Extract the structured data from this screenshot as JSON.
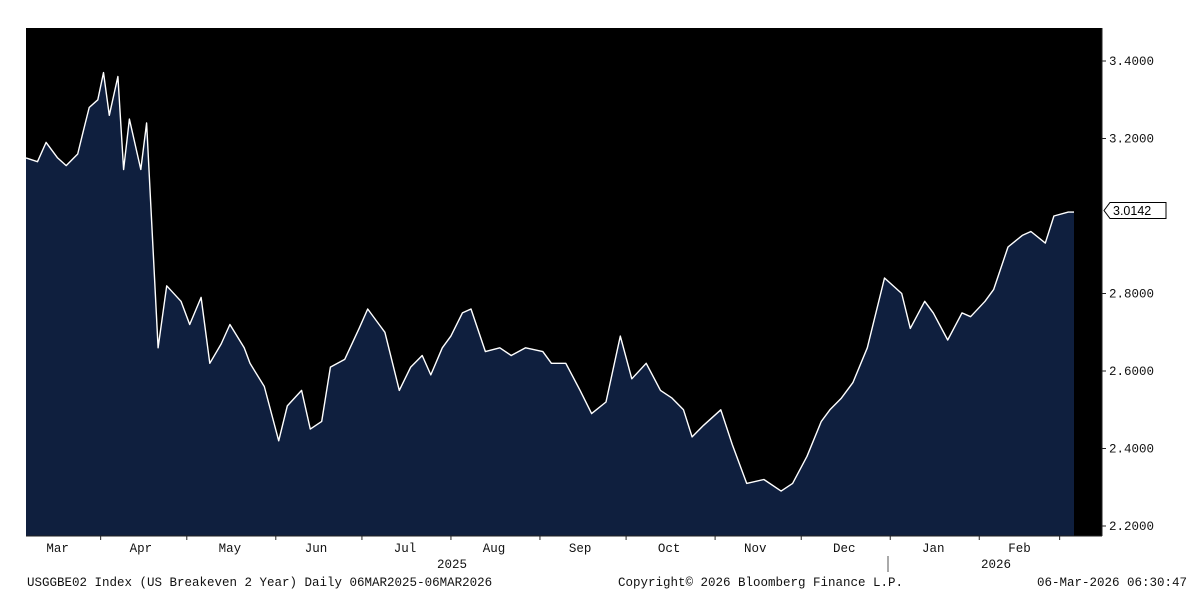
{
  "chart_data": {
    "type": "area",
    "title": "",
    "xlabel": "",
    "ylabel": "",
    "ylim": [
      2.18,
      3.48
    ],
    "yticks": [
      "2.2000",
      "2.4000",
      "2.6000",
      "2.8000",
      "3.2000",
      "3.4000"
    ],
    "ytick_values": [
      2.2,
      2.4,
      2.6,
      2.8,
      3.2,
      3.4
    ],
    "last_value_label": "3.0142",
    "last_value": 3.0142,
    "month_labels": [
      "Mar",
      "Apr",
      "May",
      "Jun",
      "Jul",
      "Aug",
      "Sep",
      "Oct",
      "Nov",
      "Dec",
      "Jan",
      "Feb"
    ],
    "year_labels": [
      "2025",
      "2026"
    ],
    "grid": false,
    "legend": "none",
    "series": [
      {
        "x": [
          "2025-03-06",
          "2025-03-10",
          "2025-03-13",
          "2025-03-17",
          "2025-03-20",
          "2025-03-24",
          "2025-03-26",
          "2025-03-28",
          "2025-03-31",
          "2025-04-02",
          "2025-04-04",
          "2025-04-07",
          "2025-04-09",
          "2025-04-11",
          "2025-04-15",
          "2025-04-17",
          "2025-04-21",
          "2025-04-24",
          "2025-04-29",
          "2025-05-02",
          "2025-05-06",
          "2025-05-09",
          "2025-05-13",
          "2025-05-16",
          "2025-05-21",
          "2025-05-23",
          "2025-05-28",
          "2025-06-02",
          "2025-06-05",
          "2025-06-10",
          "2025-06-13",
          "2025-06-17",
          "2025-06-20",
          "2025-06-25",
          "2025-06-30",
          "2025-07-03",
          "2025-07-09",
          "2025-07-14",
          "2025-07-18",
          "2025-07-22",
          "2025-07-25",
          "2025-07-29",
          "2025-08-01",
          "2025-08-05",
          "2025-08-08",
          "2025-08-13",
          "2025-08-18",
          "2025-08-22",
          "2025-08-27",
          "2025-09-02",
          "2025-09-05",
          "2025-09-10",
          "2025-09-15",
          "2025-09-19",
          "2025-09-24",
          "2025-09-29",
          "2025-10-03",
          "2025-10-08",
          "2025-10-13",
          "2025-10-17",
          "2025-10-21",
          "2025-10-24",
          "2025-10-28",
          "2025-11-03",
          "2025-11-07",
          "2025-11-12",
          "2025-11-18",
          "2025-11-24",
          "2025-11-28",
          "2025-12-03",
          "2025-12-08",
          "2025-12-11",
          "2025-12-15",
          "2025-12-19",
          "2025-12-24",
          "2025-12-30",
          "2026-01-05",
          "2026-01-08",
          "2026-01-13",
          "2026-01-16",
          "2026-01-21",
          "2026-01-26",
          "2026-01-29",
          "2026-02-03",
          "2026-02-06",
          "2026-02-11",
          "2026-02-16",
          "2026-02-19",
          "2026-02-24",
          "2026-02-27",
          "2026-03-04",
          "2026-03-06"
        ],
        "values": [
          3.15,
          3.14,
          3.19,
          3.15,
          3.13,
          3.16,
          3.22,
          3.28,
          3.3,
          3.37,
          3.26,
          3.36,
          3.12,
          3.25,
          3.12,
          3.24,
          2.66,
          2.82,
          2.78,
          2.72,
          2.79,
          2.62,
          2.67,
          2.72,
          2.66,
          2.62,
          2.56,
          2.42,
          2.51,
          2.55,
          2.45,
          2.47,
          2.61,
          2.63,
          2.71,
          2.76,
          2.7,
          2.55,
          2.61,
          2.64,
          2.59,
          2.66,
          2.69,
          2.75,
          2.76,
          2.65,
          2.66,
          2.64,
          2.66,
          2.65,
          2.62,
          2.62,
          2.55,
          2.49,
          2.52,
          2.69,
          2.58,
          2.62,
          2.55,
          2.53,
          2.5,
          2.43,
          2.46,
          2.5,
          2.41,
          2.31,
          2.32,
          2.29,
          2.31,
          2.38,
          2.47,
          2.5,
          2.53,
          2.57,
          2.66,
          2.84,
          2.8,
          2.71,
          2.78,
          2.75,
          2.68,
          2.75,
          2.74,
          2.78,
          2.81,
          2.92,
          2.95,
          2.96,
          2.93,
          3.0,
          3.01,
          3.01
        ]
      }
    ]
  },
  "footer": {
    "left": "USGGBE02 Index (US Breakeven 2 Year) Daily 06MAR2025-06MAR2026",
    "center": "Copyright© 2026 Bloomberg Finance L.P.",
    "right": "06-Mar-2026 06:30:47"
  },
  "colors": {
    "plot_bg": "#000000",
    "area_fill": "#0f1f3e",
    "line": "#ffffff",
    "axis_text": "#111111"
  }
}
